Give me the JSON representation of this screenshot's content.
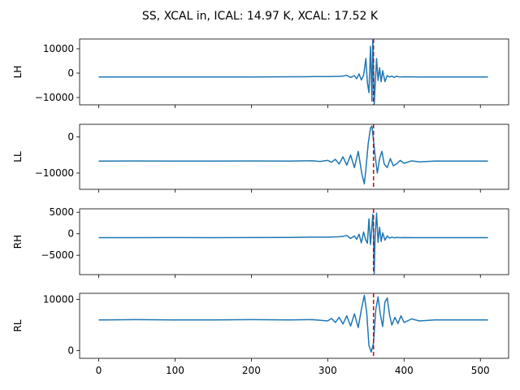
{
  "chart_data": {
    "type": "line",
    "title": "SS, XCAL in, ICAL: 14.97 K, XCAL: 17.52 K",
    "sharex": true,
    "xlim": [
      -25,
      537
    ],
    "xticks": [
      0,
      100,
      200,
      300,
      400,
      500
    ],
    "xtick_labels": [
      "0",
      "100",
      "200",
      "300",
      "400",
      "500"
    ],
    "marker_x": 360,
    "series_color": "#1f77b4",
    "marker_color": "#cc0000",
    "panels": [
      {
        "ylabel": "LH",
        "ylim": [
          -13000,
          14000
        ],
        "yticks": [
          10000,
          0,
          -10000
        ],
        "ytick_labels": [
          "10000",
          "0",
          "−10000"
        ],
        "x": [
          0,
          50,
          100,
          150,
          200,
          250,
          280,
          300,
          315,
          320,
          325,
          330,
          335,
          338,
          341,
          344,
          347,
          350,
          352,
          354,
          356,
          358,
          359,
          360,
          361,
          362,
          364,
          366,
          368,
          370,
          372,
          375,
          378,
          381,
          384,
          387,
          390,
          395,
          400,
          420,
          450,
          510
        ],
        "y": [
          -1600,
          -1580,
          -1600,
          -1580,
          -1560,
          -1500,
          -1450,
          -1400,
          -1300,
          -1200,
          -900,
          -1800,
          -1000,
          -2300,
          -300,
          -2800,
          -900,
          6000,
          -4000,
          -8000,
          11000,
          -11500,
          14000,
          2000,
          -13000,
          -6000,
          6000,
          -3000,
          2200,
          -3500,
          1000,
          -3500,
          -1000,
          -1600,
          -1200,
          -1800,
          -1300,
          -1600,
          -1500,
          -1550,
          -1600,
          -1600
        ]
      },
      {
        "ylabel": "LL",
        "ylim": [
          -14500,
          3500
        ],
        "yticks": [
          0,
          -10000
        ],
        "ytick_labels": [
          "0",
          "−10000"
        ],
        "x": [
          0,
          50,
          100,
          150,
          200,
          250,
          280,
          290,
          300,
          305,
          310,
          315,
          320,
          325,
          330,
          335,
          340,
          345,
          348,
          350,
          353,
          356,
          358,
          360,
          362,
          365,
          368,
          371,
          374,
          378,
          382,
          386,
          390,
          395,
          400,
          410,
          420,
          440,
          470,
          510
        ],
        "y": [
          -6700,
          -6650,
          -6700,
          -6700,
          -6650,
          -6700,
          -6600,
          -6800,
          -6500,
          -7000,
          -6200,
          -7500,
          -5500,
          -7800,
          -5000,
          -8500,
          -4000,
          -10500,
          -13000,
          -9000,
          -2000,
          2500,
          3000,
          -1000,
          -5000,
          -10000,
          -6000,
          -4000,
          -7500,
          -8500,
          -6000,
          -8000,
          -7500,
          -6500,
          -7300,
          -6600,
          -6900,
          -6700,
          -6700,
          -6700
        ]
      },
      {
        "ylabel": "RH",
        "ylim": [
          -9500,
          5800
        ],
        "yticks": [
          5000,
          0,
          -5000
        ],
        "ytick_labels": [
          "5000",
          "0",
          "−5000"
        ],
        "x": [
          0,
          50,
          100,
          150,
          200,
          250,
          280,
          300,
          315,
          320,
          325,
          330,
          335,
          338,
          341,
          344,
          347,
          350,
          352,
          354,
          356,
          358,
          359,
          360,
          361,
          362,
          364,
          366,
          368,
          370,
          372,
          375,
          378,
          381,
          384,
          387,
          390,
          395,
          400,
          420,
          450,
          510
        ],
        "y": [
          -900,
          -900,
          -880,
          -900,
          -880,
          -850,
          -800,
          -800,
          -700,
          -600,
          -400,
          -1100,
          -500,
          -1300,
          -100,
          -2100,
          400,
          -1500,
          -2200,
          3500,
          -2500,
          1800,
          4500,
          500,
          -9200,
          -1000,
          4800,
          -2000,
          1500,
          -1800,
          200,
          -1500,
          -500,
          -1000,
          -800,
          -950,
          -850,
          -900,
          -880,
          -900,
          -900,
          -900
        ]
      },
      {
        "ylabel": "RL",
        "ylim": [
          -1500,
          11200
        ],
        "yticks": [
          10000,
          0
        ],
        "ytick_labels": [
          "10000",
          "0"
        ],
        "x": [
          0,
          50,
          100,
          150,
          200,
          250,
          280,
          300,
          305,
          310,
          315,
          320,
          325,
          330,
          335,
          340,
          344,
          348,
          351,
          354,
          357,
          360,
          363,
          366,
          369,
          372,
          375,
          378,
          381,
          384,
          388,
          392,
          396,
          400,
          410,
          420,
          440,
          470,
          510
        ],
        "y": [
          6000,
          6050,
          6000,
          6000,
          6050,
          6000,
          6050,
          5800,
          6300,
          5500,
          6500,
          5200,
          6800,
          4800,
          7200,
          4500,
          8000,
          10800,
          7500,
          1000,
          -300,
          1500,
          8000,
          10500,
          7000,
          4700,
          9500,
          10300,
          7000,
          5000,
          6500,
          5300,
          6800,
          5500,
          6200,
          5800,
          6000,
          6000,
          6000
        ]
      }
    ]
  }
}
